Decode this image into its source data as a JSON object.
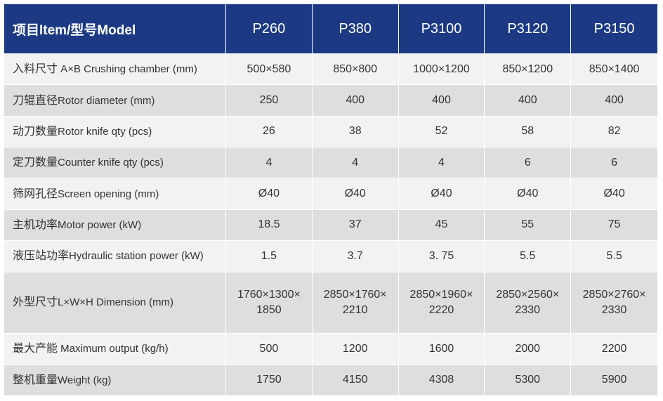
{
  "table": {
    "header": {
      "item": "项目Item/型号Model",
      "models": [
        "P260",
        "P380",
        "P3100",
        "P3120",
        "P3150"
      ]
    },
    "rows": [
      {
        "zh": "入料尺寸",
        "en": " A×B Crushing chamber (mm)",
        "values": [
          "500×580",
          "850×800",
          "1000×1200",
          "850×1200",
          "850×1400"
        ]
      },
      {
        "zh": "刀辊直径",
        "en": "Rotor diameter (mm)",
        "values": [
          "250",
          "400",
          "400",
          "400",
          "400"
        ]
      },
      {
        "zh": "动刀数量",
        "en": "Rotor knife qty (pcs)",
        "values": [
          "26",
          "38",
          "52",
          "58",
          "82"
        ]
      },
      {
        "zh": "定刀数量",
        "en": "Counter knife qty (pcs)",
        "values": [
          "4",
          "4",
          "4",
          "6",
          "6"
        ]
      },
      {
        "zh": "筛网孔径",
        "en": "Screen opening (mm)",
        "values": [
          "Ø40",
          "Ø40",
          "Ø40",
          "Ø40",
          "Ø40"
        ]
      },
      {
        "zh": "主机功率",
        "en": "Motor power  (kW)",
        "values": [
          "18.5",
          "37",
          "45",
          "55",
          "75"
        ]
      },
      {
        "zh": "液压站功率",
        "en": "Hydraulic station power (kW)",
        "values": [
          "1.5",
          "3.7",
          "3. 75",
          "5.5",
          "5.5"
        ]
      },
      {
        "zh": "外型尺寸",
        "en": "L×W×H Dimension (mm)",
        "values": [
          "1760×1300×",
          "2850×1760×",
          "2850×1960×",
          "2850×2560×",
          "2850×2760×"
        ],
        "values2": [
          "1850",
          "2210",
          "2220",
          "2330",
          "2330"
        ]
      },
      {
        "zh": "最大产能",
        "en": " Maximum output (kg/h)",
        "values": [
          "500",
          "1200",
          "1600",
          "2000",
          "2200"
        ]
      },
      {
        "zh": "整机重量",
        "en": "Weight (kg)",
        "values": [
          "1750",
          "4150",
          "4308",
          "5300",
          "5900"
        ]
      }
    ]
  },
  "colors": {
    "header_bg": "#1c3a84",
    "row_light": "#f2f2f2",
    "row_dark": "#dedede"
  }
}
